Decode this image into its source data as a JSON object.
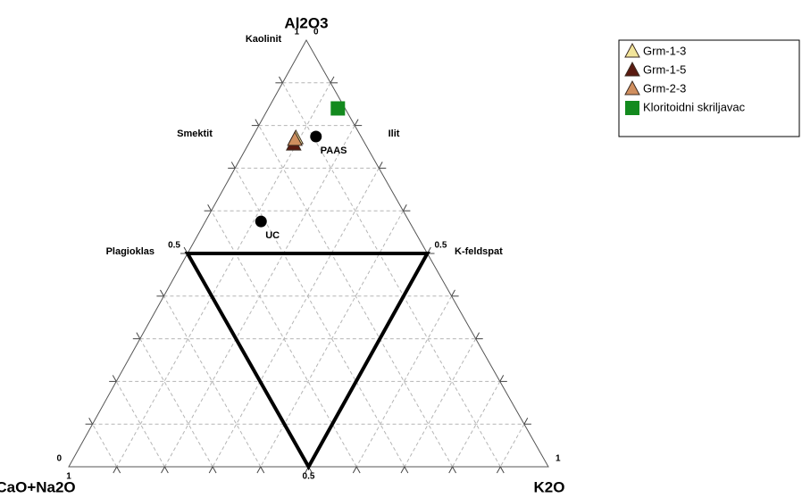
{
  "chart_data": {
    "type": "ternary",
    "axis_labels": {
      "top": "Al2O3",
      "left": "CaO+Na2O",
      "right": "K2O"
    },
    "mineral_labels": {
      "kaolinit": "Kaolinit",
      "smektit": "Smektit",
      "ilit": "Ilit",
      "plagioklas": "Plagioklas",
      "k_feldspat": "K-feldspat"
    },
    "aticks": [
      0,
      0.5,
      1
    ],
    "kticks": [
      0,
      0.5,
      1
    ],
    "cnticks": [
      0.5,
      1
    ],
    "grid": true,
    "grid_ticks": [
      0.1,
      0.2,
      0.3,
      0.4,
      0.5,
      0.6,
      0.7,
      0.8,
      0.9
    ],
    "outline": {
      "a": [
        0.5,
        0.5,
        0
      ],
      "cn": [
        0.5,
        0,
        0.5
      ],
      "k": [
        0,
        0.5,
        0.5
      ]
    },
    "series": [
      {
        "name": "Grm-1-3",
        "color": "#f2e49a",
        "marker": "triangle",
        "a": [
          0.77
        ],
        "cn": [
          0.138
        ],
        "k": [
          0.092
        ]
      },
      {
        "name": "Grm-1-5",
        "color": "#5a1a10",
        "marker": "triangle",
        "a": [
          0.755
        ],
        "cn": [
          0.15
        ],
        "k": [
          0.095
        ]
      },
      {
        "name": "Grm-2-3",
        "color": "#d08f5f",
        "marker": "triangle",
        "a": [
          0.766
        ],
        "cn": [
          0.142
        ],
        "k": [
          0.092
        ]
      },
      {
        "name": "Kloritoidni skriljavac",
        "color": "#138a1e",
        "marker": "square",
        "a": [
          0.84
        ],
        "cn": [
          0.015
        ],
        "k": [
          0.145
        ]
      }
    ],
    "reference_points": [
      {
        "name": "PAAS",
        "color": "#000000",
        "a": 0.774,
        "cn": 0.094,
        "k": 0.132
      },
      {
        "name": "UC",
        "color": "#000000",
        "a": 0.575,
        "cn": 0.309,
        "k": 0.116
      }
    ]
  }
}
